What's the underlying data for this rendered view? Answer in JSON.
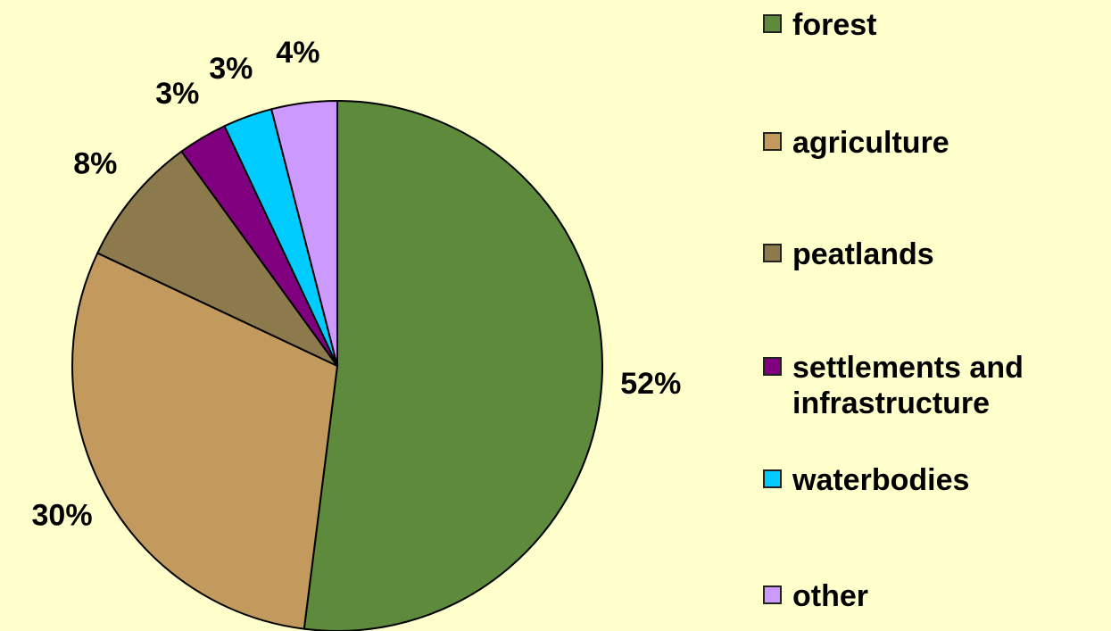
{
  "chart_data": {
    "type": "pie",
    "categories": [
      "forest",
      "agriculture",
      "peatlands",
      "settlements and infrastructure",
      "waterbodies",
      "other"
    ],
    "values": [
      52,
      30,
      8,
      3,
      3,
      4
    ],
    "value_labels": [
      "52%",
      "30%",
      "8%",
      "3%",
      "3%",
      "4%"
    ],
    "colors": [
      "#5e8a3c",
      "#c29a5e",
      "#8c7a4c",
      "#800080",
      "#00ccff",
      "#cc99ff"
    ],
    "legend": "right"
  }
}
